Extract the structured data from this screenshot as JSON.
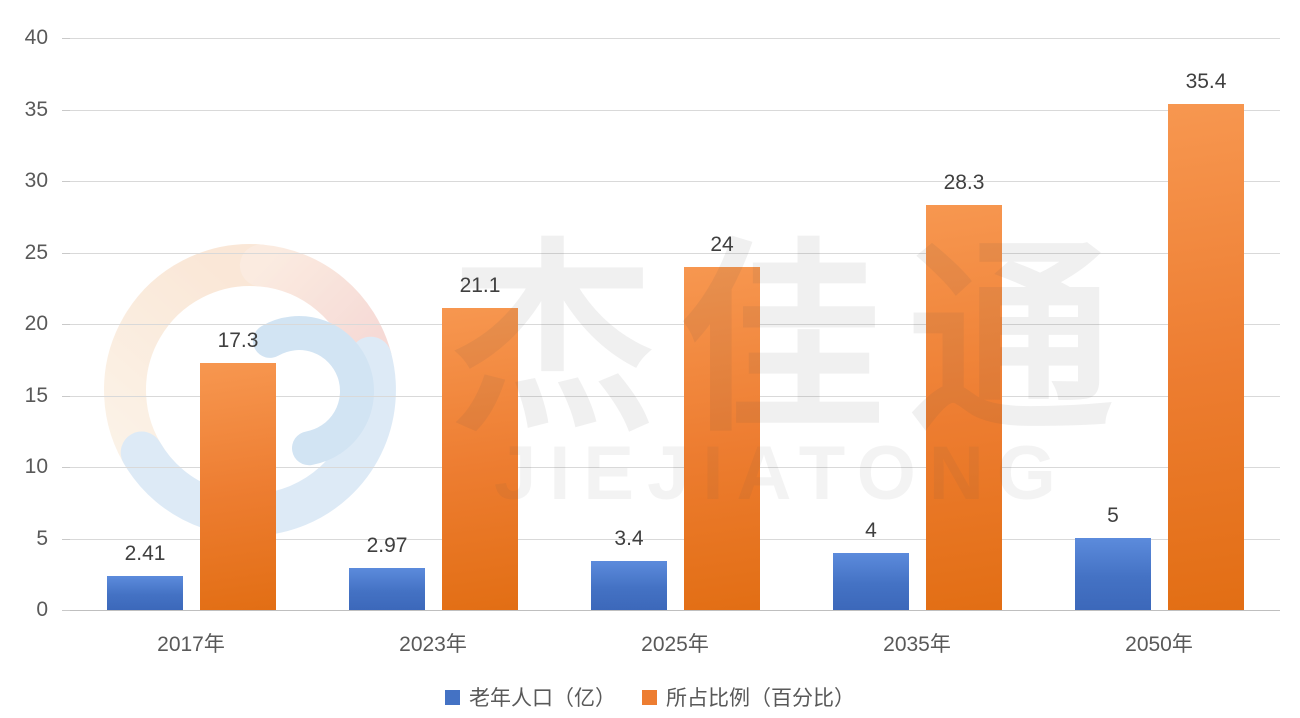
{
  "watermark": {
    "cn": "杰佳通",
    "en": "JIEJIATONG"
  },
  "colors": {
    "series_population": "#4472C4",
    "series_percentage": "#ED7D31",
    "gridline": "#D9D9D9",
    "axis_line": "#BFBFBF",
    "axis_text": "#595959",
    "data_label_text": "#3F3F3F",
    "swirl_cream": "#F7DFC5",
    "swirl_pink": "#F2C2BB",
    "swirl_blue": "#BFD9EF"
  },
  "chart_data": {
    "type": "bar",
    "title": "",
    "categories": [
      "2017年",
      "2023年",
      "2025年",
      "2035年",
      "2050年"
    ],
    "series": [
      {
        "name": "老年人口（亿）",
        "color": "#4472C4",
        "values": [
          2.41,
          2.97,
          3.4,
          4,
          5
        ],
        "labels": [
          "2.41",
          "2.97",
          "3.4",
          "4",
          "5"
        ]
      },
      {
        "name": "所占比例（百分比）",
        "color": "#ED7D31",
        "values": [
          17.3,
          21.1,
          24,
          28.3,
          35.4
        ],
        "labels": [
          "17.3",
          "21.1",
          "24",
          "28.3",
          "35.4"
        ]
      }
    ],
    "y_axis": {
      "min": 0,
      "max": 40,
      "step": 5,
      "ticks": [
        "0",
        "5",
        "10",
        "15",
        "20",
        "25",
        "30",
        "35",
        "40"
      ]
    },
    "xlabel": "",
    "ylabel": "",
    "grid": true,
    "legend_position": "bottom"
  }
}
